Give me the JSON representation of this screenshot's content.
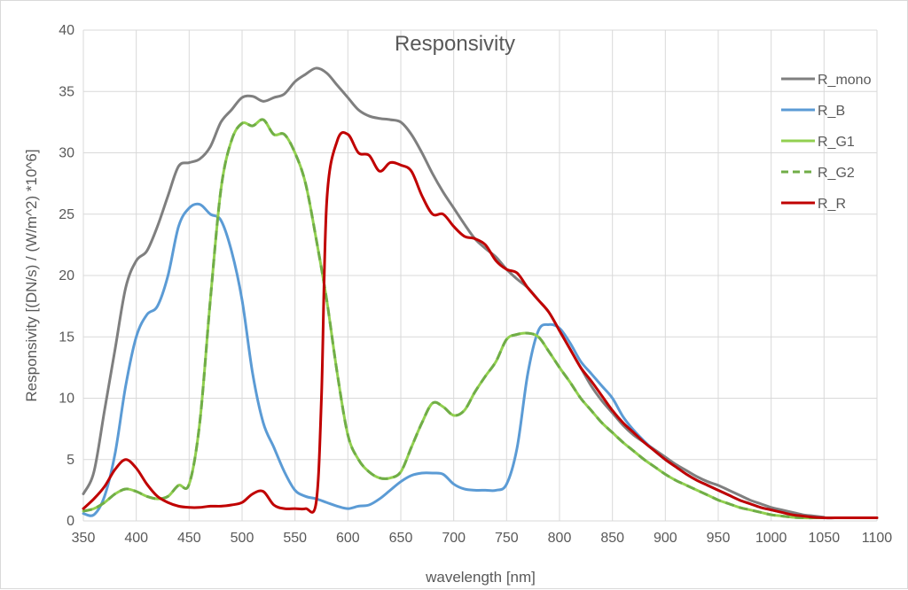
{
  "chart_data": {
    "type": "line",
    "title": "Responsivity",
    "xlabel": "wavelength [nm]",
    "ylabel": "Responsivity [(DN/s) / (W/m^2) *10^6]",
    "xlim": [
      350,
      1100
    ],
    "ylim": [
      0,
      40
    ],
    "x_ticks": [
      350,
      400,
      450,
      500,
      550,
      600,
      650,
      700,
      750,
      800,
      850,
      900,
      950,
      1000,
      1050,
      1100
    ],
    "y_ticks": [
      0,
      5,
      10,
      15,
      20,
      25,
      30,
      35,
      40
    ],
    "grid": "vertical and horizontal major gridlines",
    "legend_position": "top-right",
    "series": [
      {
        "name": "R_mono",
        "color": "#7f7f7f",
        "dash": "solid",
        "x": [
          350,
          360,
          370,
          380,
          390,
          400,
          410,
          420,
          430,
          440,
          450,
          460,
          470,
          480,
          490,
          500,
          510,
          520,
          530,
          540,
          550,
          560,
          570,
          580,
          590,
          600,
          610,
          620,
          630,
          640,
          650,
          660,
          670,
          680,
          690,
          700,
          710,
          720,
          730,
          740,
          750,
          760,
          770,
          780,
          790,
          800,
          810,
          820,
          830,
          840,
          850,
          860,
          870,
          880,
          890,
          900,
          910,
          920,
          930,
          940,
          950,
          960,
          970,
          980,
          990,
          1000,
          1010,
          1020,
          1030,
          1040,
          1050,
          1060,
          1070,
          1080,
          1090,
          1100
        ],
        "y": [
          2.2,
          4,
          9,
          14,
          19,
          21.2,
          22,
          24,
          26.5,
          28.9,
          29.2,
          29.5,
          30.5,
          32.5,
          33.5,
          34.5,
          34.6,
          34.2,
          34.5,
          34.8,
          35.8,
          36.4,
          36.9,
          36.5,
          35.5,
          34.5,
          33.5,
          33,
          32.8,
          32.7,
          32.5,
          31.5,
          30,
          28.3,
          26.8,
          25.5,
          24.2,
          23,
          22.2,
          21.5,
          20.5,
          19.7,
          19,
          18,
          17,
          15.5,
          14,
          12.5,
          11,
          9.8,
          8.8,
          7.8,
          7,
          6.4,
          5.8,
          5.2,
          4.6,
          4.1,
          3.6,
          3.2,
          2.9,
          2.5,
          2.1,
          1.7,
          1.4,
          1.1,
          0.9,
          0.7,
          0.5,
          0.4,
          0.3,
          2.8,
          2.5,
          2.2,
          1.9,
          1.6
        ],
        "note_y": [
          2.2,
          4.0,
          9.0,
          14.0,
          19.0,
          21.2,
          22.0,
          24.0,
          26.5,
          28.9,
          29.2,
          29.5,
          30.5,
          32.5,
          33.5,
          34.5,
          34.6,
          34.2,
          34.5,
          34.8,
          35.8,
          36.4,
          36.9,
          36.5,
          35.5,
          34.5,
          33.5,
          33.0,
          32.8,
          32.7,
          32.5,
          31.5,
          30.0,
          28.3,
          26.8,
          25.5,
          24.2,
          23.0,
          22.2,
          21.5,
          20.5,
          19.7,
          19.0,
          18.0,
          17.0,
          15.5,
          14.0,
          12.5,
          11.0,
          9.8,
          8.8,
          7.8,
          7.0,
          6.4,
          5.8,
          5.2,
          4.6,
          4.1,
          3.6,
          3.2,
          2.9,
          2.5,
          2.1,
          1.7,
          1.4,
          1.1,
          0.9,
          0.7,
          0.5,
          0.4,
          0.3
        ]
      },
      {
        "name": "R_B",
        "color": "#5b9bd5",
        "dash": "solid",
        "x": [
          350,
          360,
          370,
          380,
          390,
          400,
          410,
          420,
          430,
          440,
          450,
          460,
          470,
          480,
          490,
          500,
          510,
          520,
          530,
          540,
          550,
          560,
          570,
          580,
          590,
          600,
          610,
          620,
          630,
          640,
          650,
          660,
          670,
          680,
          690,
          700,
          710,
          720,
          730,
          740,
          750,
          760,
          770,
          780,
          790,
          800,
          810,
          820,
          830,
          840,
          850,
          860,
          870,
          880,
          890,
          900,
          910,
          920,
          930,
          940,
          950,
          960,
          970,
          980,
          990,
          1000,
          1010,
          1020,
          1030,
          1040,
          1050,
          1060,
          1070,
          1080,
          1090,
          1100
        ],
        "y": [
          0.6,
          0.5,
          2,
          5.5,
          11,
          15,
          16.8,
          17.5,
          20,
          24,
          25.5,
          25.8,
          25,
          24.5,
          22,
          18,
          12,
          8,
          6,
          4,
          2.5,
          2,
          1.8,
          1.5,
          1.2,
          1,
          1.2,
          1.3,
          1.8,
          2.5,
          3.2,
          3.7,
          3.9,
          3.9,
          3.8,
          3,
          2.6,
          2.5,
          2.5,
          2.5,
          3,
          6,
          12,
          15.5,
          16,
          15.7,
          14.5,
          13,
          12,
          11,
          10,
          8.5,
          7.4,
          6.5,
          5.7,
          5,
          4.4,
          3.8,
          3.3,
          2.9,
          2.5,
          2.1,
          1.7,
          1.4,
          1.1,
          0.9,
          0.7,
          0.5,
          0.4,
          0.3,
          0.25,
          0.25,
          0.25,
          0.25,
          0.25,
          0.25
        ]
      },
      {
        "name": "R_G1",
        "color": "#92d050",
        "dash": "solid",
        "x": [
          350,
          360,
          370,
          380,
          390,
          400,
          410,
          420,
          430,
          440,
          450,
          460,
          470,
          480,
          490,
          500,
          510,
          520,
          530,
          540,
          550,
          560,
          570,
          580,
          590,
          600,
          610,
          620,
          630,
          640,
          650,
          660,
          670,
          680,
          690,
          700,
          710,
          720,
          730,
          740,
          750,
          760,
          770,
          780,
          790,
          800,
          810,
          820,
          830,
          840,
          850,
          860,
          870,
          880,
          890,
          900,
          910,
          920,
          930,
          940,
          950,
          960,
          970,
          980,
          990,
          1000,
          1010,
          1020,
          1030,
          1040,
          1050,
          1060,
          1070,
          1080,
          1090,
          1100
        ],
        "y": [
          0.8,
          1,
          1.5,
          2.2,
          2.6,
          2.4,
          2,
          1.8,
          2,
          2.9,
          3,
          8,
          18,
          27,
          31,
          32.4,
          32.2,
          32.7,
          31.5,
          31.5,
          30,
          27.5,
          23,
          18,
          12,
          7,
          5,
          4,
          3.5,
          3.5,
          4,
          6,
          8,
          9.6,
          9.3,
          8.6,
          9,
          10.5,
          11.8,
          13,
          14.8,
          15.2,
          15.3,
          15,
          13.8,
          12.5,
          11.3,
          10,
          9,
          8,
          7.2,
          6.4,
          5.7,
          5,
          4.4,
          3.8,
          3.3,
          2.9,
          2.5,
          2.1,
          1.7,
          1.4,
          1.1,
          0.9,
          0.7,
          0.5,
          0.4,
          0.3,
          0.25,
          0.25,
          0.25,
          0.25,
          0.25,
          0.25,
          0.25,
          0.25
        ]
      },
      {
        "name": "R_G2",
        "color": "#70ad47",
        "dash": "dashed",
        "x": [
          350,
          360,
          370,
          380,
          390,
          400,
          410,
          420,
          430,
          440,
          450,
          460,
          470,
          480,
          490,
          500,
          510,
          520,
          530,
          540,
          550,
          560,
          570,
          580,
          590,
          600,
          610,
          620,
          630,
          640,
          650,
          660,
          670,
          680,
          690,
          700,
          710,
          720,
          730,
          740,
          750,
          760,
          770,
          780,
          790,
          800,
          810,
          820,
          830,
          840,
          850,
          860,
          870,
          880,
          890,
          900,
          910,
          920,
          930,
          940,
          950,
          960,
          970,
          980,
          990,
          1000,
          1010,
          1020,
          1030,
          1040,
          1050,
          1060,
          1070,
          1080,
          1090,
          1100
        ],
        "y": [
          0.8,
          1,
          1.5,
          2.2,
          2.6,
          2.4,
          2,
          1.8,
          2,
          2.9,
          3,
          8,
          18,
          27,
          31,
          32.4,
          32.2,
          32.7,
          31.5,
          31.5,
          30,
          27.5,
          23,
          18,
          12,
          7,
          5,
          4,
          3.5,
          3.5,
          4,
          6,
          8,
          9.6,
          9.3,
          8.6,
          9,
          10.5,
          11.8,
          13,
          14.8,
          15.2,
          15.3,
          15,
          13.8,
          12.5,
          11.3,
          10,
          9,
          8,
          7.2,
          6.4,
          5.7,
          5,
          4.4,
          3.8,
          3.3,
          2.9,
          2.5,
          2.1,
          1.7,
          1.4,
          1.1,
          0.9,
          0.7,
          0.5,
          0.4,
          0.3,
          0.25,
          0.25,
          0.25,
          0.25,
          0.25,
          0.25,
          0.25,
          0.25
        ]
      },
      {
        "name": "R_R",
        "color": "#c00000",
        "dash": "solid",
        "x": [
          350,
          360,
          370,
          380,
          390,
          400,
          410,
          420,
          430,
          440,
          450,
          460,
          470,
          480,
          490,
          500,
          510,
          520,
          530,
          540,
          550,
          560,
          570,
          575,
          580,
          590,
          600,
          610,
          620,
          630,
          640,
          650,
          660,
          670,
          680,
          690,
          700,
          710,
          720,
          730,
          740,
          750,
          760,
          770,
          780,
          790,
          800,
          810,
          820,
          830,
          840,
          850,
          860,
          870,
          880,
          890,
          900,
          910,
          920,
          930,
          940,
          950,
          960,
          970,
          980,
          990,
          1000,
          1010,
          1020,
          1030,
          1040,
          1050,
          1060,
          1070,
          1080,
          1090,
          1100
        ],
        "y": [
          1,
          1.8,
          2.8,
          4.2,
          5,
          4.3,
          3,
          2,
          1.5,
          1.2,
          1.1,
          1.1,
          1.2,
          1.2,
          1.3,
          1.5,
          2.2,
          2.4,
          1.3,
          1,
          1,
          1,
          1.5,
          10,
          26,
          31,
          31.5,
          30,
          29.8,
          28.5,
          29.2,
          29,
          28.5,
          26.5,
          25,
          25,
          24,
          23.2,
          23,
          22.5,
          21.2,
          20.5,
          20.2,
          19,
          18,
          17,
          15.5,
          14,
          12.5,
          11.4,
          10.2,
          9,
          8,
          7.2,
          6.4,
          5.7,
          5,
          4.4,
          3.8,
          3.3,
          2.9,
          2.5,
          2.1,
          1.7,
          1.4,
          1.1,
          0.9,
          0.7,
          0.5,
          0.4,
          0.3,
          0.25,
          0.25,
          0.25,
          0.25,
          0.25,
          0.25
        ]
      }
    ]
  }
}
